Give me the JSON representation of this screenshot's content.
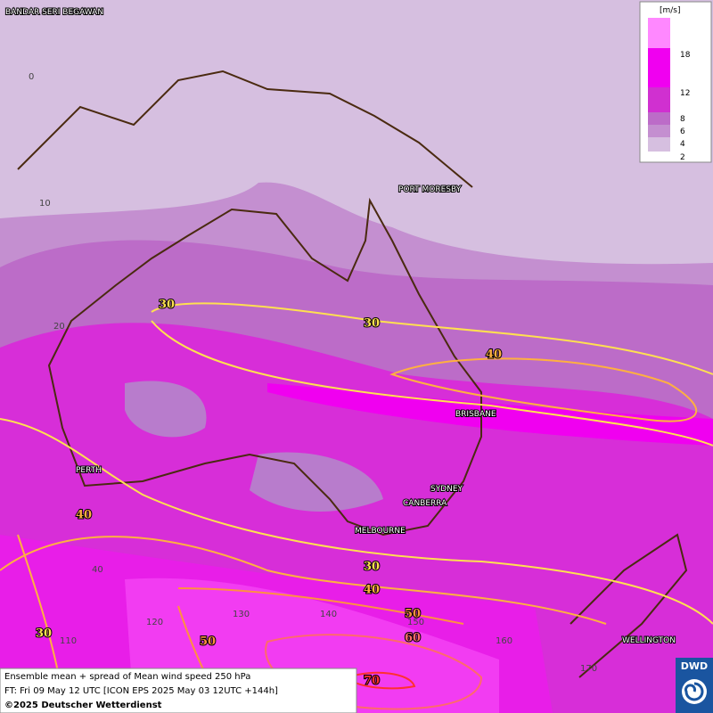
{
  "cities": [
    "BANDAR SERI BEGAWAN",
    "PORT MORESBY",
    "BRISBANE",
    "PERTH",
    "SYDNEY",
    "CANBERRA",
    "MELBOURNE",
    "WELLINGTON"
  ],
  "latitude_labels": [
    0,
    10,
    20,
    40
  ],
  "longitude_labels": [
    110,
    120,
    130,
    140,
    150,
    160,
    170
  ],
  "contour_labels": [
    30,
    30,
    40,
    40,
    30,
    40,
    50,
    60,
    70,
    50,
    30
  ],
  "legend": {
    "unit": "[m/s]",
    "ticks": [
      18,
      12,
      8,
      6,
      4,
      2
    ]
  },
  "footer": {
    "lines": [
      "Ensemble mean + spread of Mean wind speed 250 hPa",
      "FT: Fri 09 May 12 UTC [ICON EPS 2025 May 03 12UTC +144h]",
      "©2025 Deutscher Wetterdienst"
    ]
  },
  "logo": "DWD"
}
